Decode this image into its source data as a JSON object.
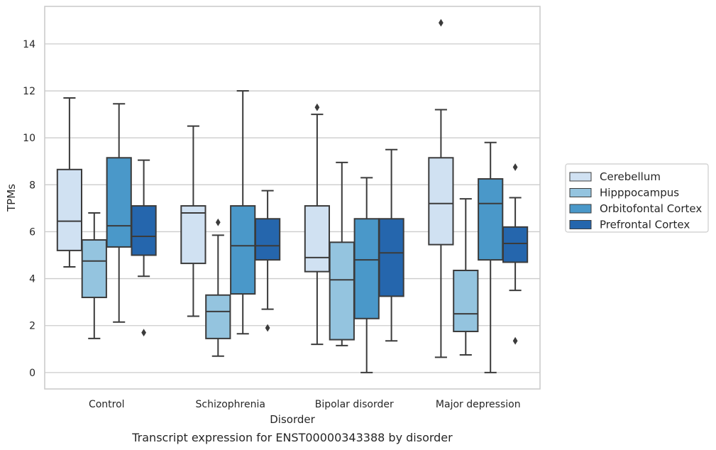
{
  "chart_data": {
    "type": "box",
    "title": "",
    "caption": "Transcript expression for ENST00000343388 by disorder",
    "xlabel": "Disorder",
    "ylabel": "TPMs",
    "ylim": [
      -0.7,
      15.6
    ],
    "yticks": [
      0,
      2,
      4,
      6,
      8,
      10,
      12,
      14
    ],
    "grid": "horizontal",
    "legend_position": "right",
    "categories": [
      "Control",
      "Schizophrenia",
      "Bipolar disorder",
      "Major depression"
    ],
    "series": [
      {
        "name": "Cerebellum",
        "color": "#d0e1f2",
        "boxes": [
          {
            "whisker_low": 4.5,
            "q1": 5.2,
            "median": 6.45,
            "q3": 8.65,
            "whisker_high": 11.7,
            "outliers": []
          },
          {
            "whisker_low": 2.4,
            "q1": 4.65,
            "median": 6.8,
            "q3": 7.1,
            "whisker_high": 10.5,
            "outliers": []
          },
          {
            "whisker_low": 1.2,
            "q1": 4.3,
            "median": 4.9,
            "q3": 7.1,
            "whisker_high": 11.0,
            "outliers": [
              11.3
            ]
          },
          {
            "whisker_low": 0.65,
            "q1": 5.45,
            "median": 7.2,
            "q3": 9.15,
            "whisker_high": 11.2,
            "outliers": [
              14.9
            ]
          }
        ]
      },
      {
        "name": "Hipppocampus",
        "color": "#94c4df",
        "boxes": [
          {
            "whisker_low": 1.45,
            "q1": 3.2,
            "median": 4.75,
            "q3": 5.65,
            "whisker_high": 6.8,
            "outliers": []
          },
          {
            "whisker_low": 0.7,
            "q1": 1.45,
            "median": 2.6,
            "q3": 3.3,
            "whisker_high": 5.85,
            "outliers": [
              6.4
            ]
          },
          {
            "whisker_low": 1.15,
            "q1": 1.4,
            "median": 3.95,
            "q3": 5.55,
            "whisker_high": 8.95,
            "outliers": []
          },
          {
            "whisker_low": 0.75,
            "q1": 1.75,
            "median": 2.5,
            "q3": 4.35,
            "whisker_high": 7.4,
            "outliers": []
          }
        ]
      },
      {
        "name": "Orbitofontal Cortex",
        "color": "#4a98c9",
        "boxes": [
          {
            "whisker_low": 2.15,
            "q1": 5.35,
            "median": 6.25,
            "q3": 9.15,
            "whisker_high": 11.45,
            "outliers": []
          },
          {
            "whisker_low": 1.65,
            "q1": 3.35,
            "median": 5.4,
            "q3": 7.1,
            "whisker_high": 12.0,
            "outliers": []
          },
          {
            "whisker_low": 0.0,
            "q1": 2.3,
            "median": 4.8,
            "q3": 6.55,
            "whisker_high": 8.3,
            "outliers": []
          },
          {
            "whisker_low": 0.0,
            "q1": 4.8,
            "median": 7.2,
            "q3": 8.25,
            "whisker_high": 9.8,
            "outliers": []
          }
        ]
      },
      {
        "name": "Prefrontal Cortex",
        "color": "#2566ad",
        "boxes": [
          {
            "whisker_low": 4.1,
            "q1": 5.0,
            "median": 5.8,
            "q3": 7.1,
            "whisker_high": 9.05,
            "outliers": [
              1.7
            ]
          },
          {
            "whisker_low": 2.7,
            "q1": 4.8,
            "median": 5.4,
            "q3": 6.55,
            "whisker_high": 7.75,
            "outliers": [
              1.9
            ]
          },
          {
            "whisker_low": 1.35,
            "q1": 3.25,
            "median": 5.1,
            "q3": 6.55,
            "whisker_high": 9.5,
            "outliers": []
          },
          {
            "whisker_low": 3.5,
            "q1": 4.7,
            "median": 5.5,
            "q3": 6.2,
            "whisker_high": 7.45,
            "outliers": [
              8.75,
              1.35
            ]
          }
        ]
      }
    ]
  }
}
